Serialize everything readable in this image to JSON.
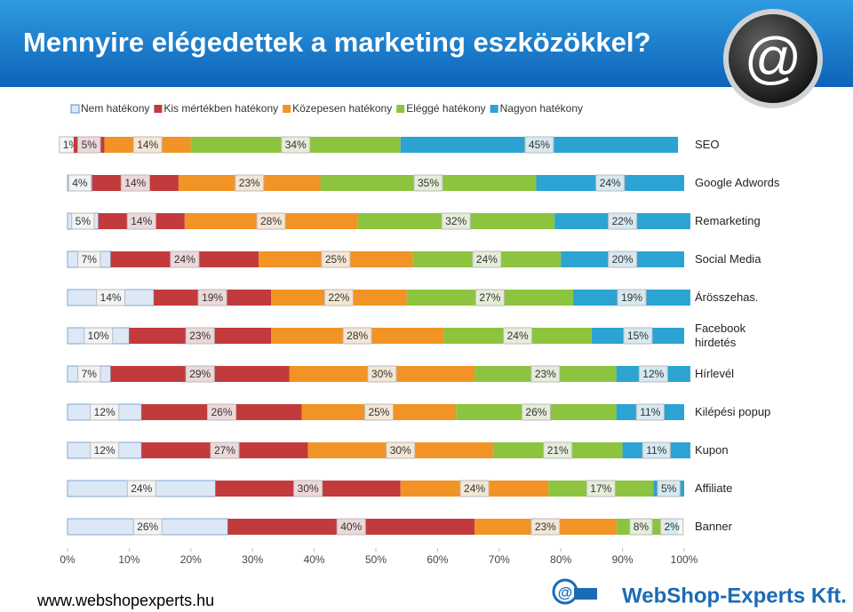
{
  "header": {
    "title": "Mennyire elégedettek a marketing eszközökkel?"
  },
  "chart_data": {
    "type": "bar",
    "orientation": "horizontal",
    "stacked": true,
    "categories": [
      "SEO",
      "Google Adwords",
      "Remarketing",
      "Social Media",
      "Árösszehas.",
      "Facebook\nhirdetés",
      "Hírlevél",
      "Kilépési popup",
      "Kupon",
      "Affiliate",
      "Banner"
    ],
    "series": [
      {
        "name": "Nem hatékony",
        "color": "#dce8f6",
        "values": [
          1,
          4,
          5,
          7,
          14,
          10,
          7,
          12,
          12,
          24,
          26
        ],
        "value_labels": [
          "1%",
          "4%",
          "5%",
          "7%",
          "14%",
          "10%",
          "7%",
          "12%",
          "12%",
          "24%",
          "26%"
        ]
      },
      {
        "name": "Kis mértékben hatékony",
        "color": "#c23a3c",
        "values": [
          5,
          14,
          14,
          24,
          19,
          23,
          29,
          26,
          27,
          30,
          40
        ],
        "value_labels": [
          "5%",
          "14%",
          "14%",
          "24%",
          "19%",
          "23%",
          "29%",
          "26%",
          "27%",
          "30%",
          "40%"
        ]
      },
      {
        "name": "Közepesen hatékony",
        "color": "#f29325",
        "values": [
          14,
          23,
          28,
          25,
          22,
          28,
          30,
          25,
          30,
          24,
          23
        ],
        "value_labels": [
          "14%",
          "23%",
          "28%",
          "25%",
          "22%",
          "28%",
          "30%",
          "25%",
          "30%",
          "24%",
          "23%"
        ]
      },
      {
        "name": "Eléggé hatékony",
        "color": "#8cc43f",
        "values": [
          34,
          35,
          32,
          24,
          27,
          24,
          23,
          26,
          21,
          17,
          8
        ],
        "value_labels": [
          "34%",
          "35%",
          "32%",
          "24%",
          "27%",
          "24%",
          "23%",
          "26%",
          "21%",
          "17%",
          "8%"
        ]
      },
      {
        "name": "Nagyon hatékony",
        "color": "#2ba3d3",
        "values": [
          45,
          24,
          22,
          20,
          19,
          15,
          12,
          11,
          11,
          5,
          2
        ],
        "value_labels": [
          "45%",
          "24%",
          "22%",
          "20%",
          "19%",
          "15%",
          "12%",
          "11%",
          "11%",
          "5%",
          "2%"
        ]
      }
    ],
    "xlim": [
      0,
      100
    ],
    "xticks": [
      {
        "value": 0,
        "label": "0%"
      },
      {
        "value": 10,
        "label": "10%"
      },
      {
        "value": 20,
        "label": "20%"
      },
      {
        "value": 30,
        "label": "30%"
      },
      {
        "value": 40,
        "label": "40%"
      },
      {
        "value": 50,
        "label": "50%"
      },
      {
        "value": 60,
        "label": "60%"
      },
      {
        "value": 70,
        "label": "70%"
      },
      {
        "value": 80,
        "label": "80%"
      },
      {
        "value": 90,
        "label": "90%"
      },
      {
        "value": 100,
        "label": "100%"
      }
    ]
  },
  "footer": {
    "url": "www.webshopexperts.hu",
    "brand": "WebShop-Experts Kft."
  }
}
